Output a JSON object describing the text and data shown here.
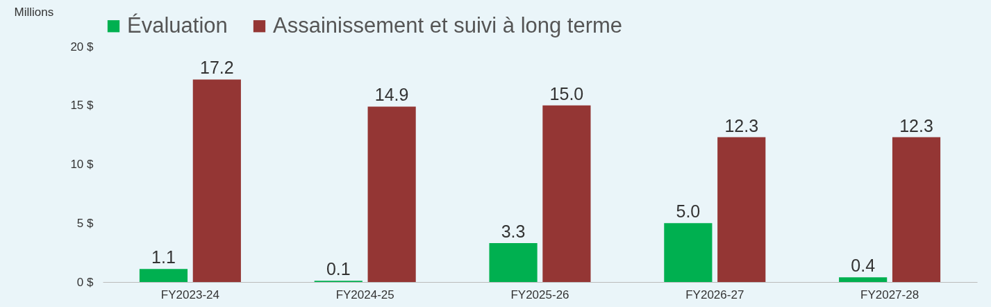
{
  "chart_data": {
    "type": "bar",
    "ylabel": "Millions",
    "categories": [
      "FY2023-24",
      "FY2024-25",
      "FY2025-26",
      "FY2026-27",
      "FY2027-28"
    ],
    "series": [
      {
        "name": "Évaluation",
        "color": "#00b050",
        "values": [
          1.1,
          0.1,
          3.3,
          5.0,
          0.4
        ],
        "value_labels": [
          "1.1",
          "0.1",
          "3.3",
          "5.0",
          "0.4"
        ]
      },
      {
        "name": "Assainissement et suivi à long terme",
        "color": "#943634",
        "values": [
          17.2,
          14.9,
          15.0,
          12.3,
          12.3
        ],
        "value_labels": [
          "17.2",
          "14.9",
          "15.0",
          "12.3",
          "12.3"
        ]
      }
    ],
    "ylim": [
      0,
      20
    ],
    "yticks": [
      {
        "value": 0,
        "label": "0 $"
      },
      {
        "value": 5,
        "label": "5 $"
      },
      {
        "value": 10,
        "label": "10 $"
      },
      {
        "value": 15,
        "label": "15 $"
      },
      {
        "value": 20,
        "label": "20 $"
      }
    ],
    "grid": false,
    "legend": "top"
  }
}
